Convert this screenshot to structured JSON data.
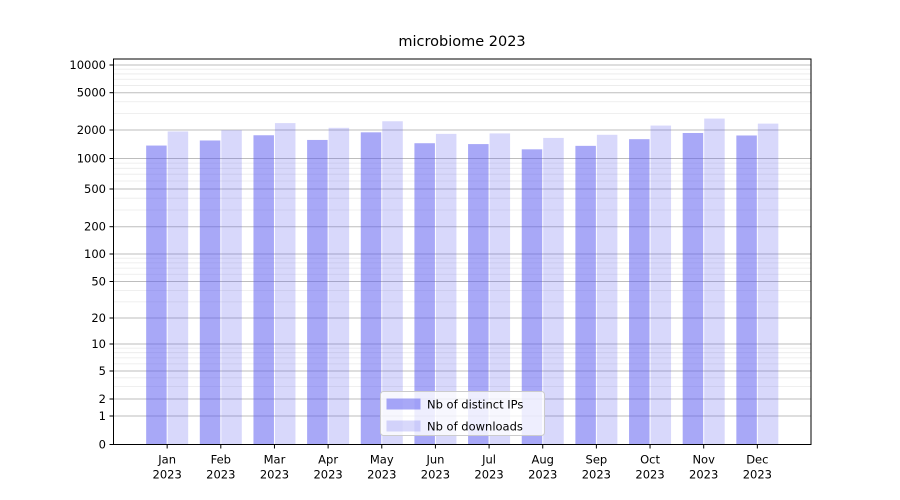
{
  "chart_data": {
    "type": "bar",
    "title": "microbiome 2023",
    "categories": [
      "Jan",
      "Feb",
      "Mar",
      "Apr",
      "May",
      "Jun",
      "Jul",
      "Aug",
      "Sep",
      "Oct",
      "Nov",
      "Dec"
    ],
    "category_year": "2023",
    "series": [
      {
        "name": "Nb of distinct IPs",
        "key": "distinct-ips",
        "color": "rgba(90,90,240,0.53)",
        "legend_color": "#a9a9f4",
        "values": [
          1370,
          1550,
          1760,
          1570,
          1890,
          1450,
          1420,
          1250,
          1360,
          1600,
          1860,
          1750
        ]
      },
      {
        "name": "Nb of downloads",
        "key": "downloads",
        "color": "rgba(90,90,240,0.24)",
        "legend_color": "#d9d9fa",
        "values": [
          1930,
          1990,
          2370,
          2110,
          2480,
          1820,
          1840,
          1650,
          1780,
          2230,
          2650,
          2340
        ]
      }
    ],
    "yscale": "symlog",
    "yticks": [
      0,
      1,
      2,
      5,
      10,
      20,
      50,
      100,
      200,
      500,
      1000,
      2000,
      5000,
      10000
    ],
    "ylim": [
      0,
      11000
    ],
    "xlabel": "",
    "ylabel": "",
    "grid": true,
    "legend_position": "lower center",
    "colors": {
      "major_grid": "#bdbdbd",
      "minor_grid": "#eaeaea",
      "axis": "#000000",
      "legend_border": "#cccccc"
    }
  }
}
